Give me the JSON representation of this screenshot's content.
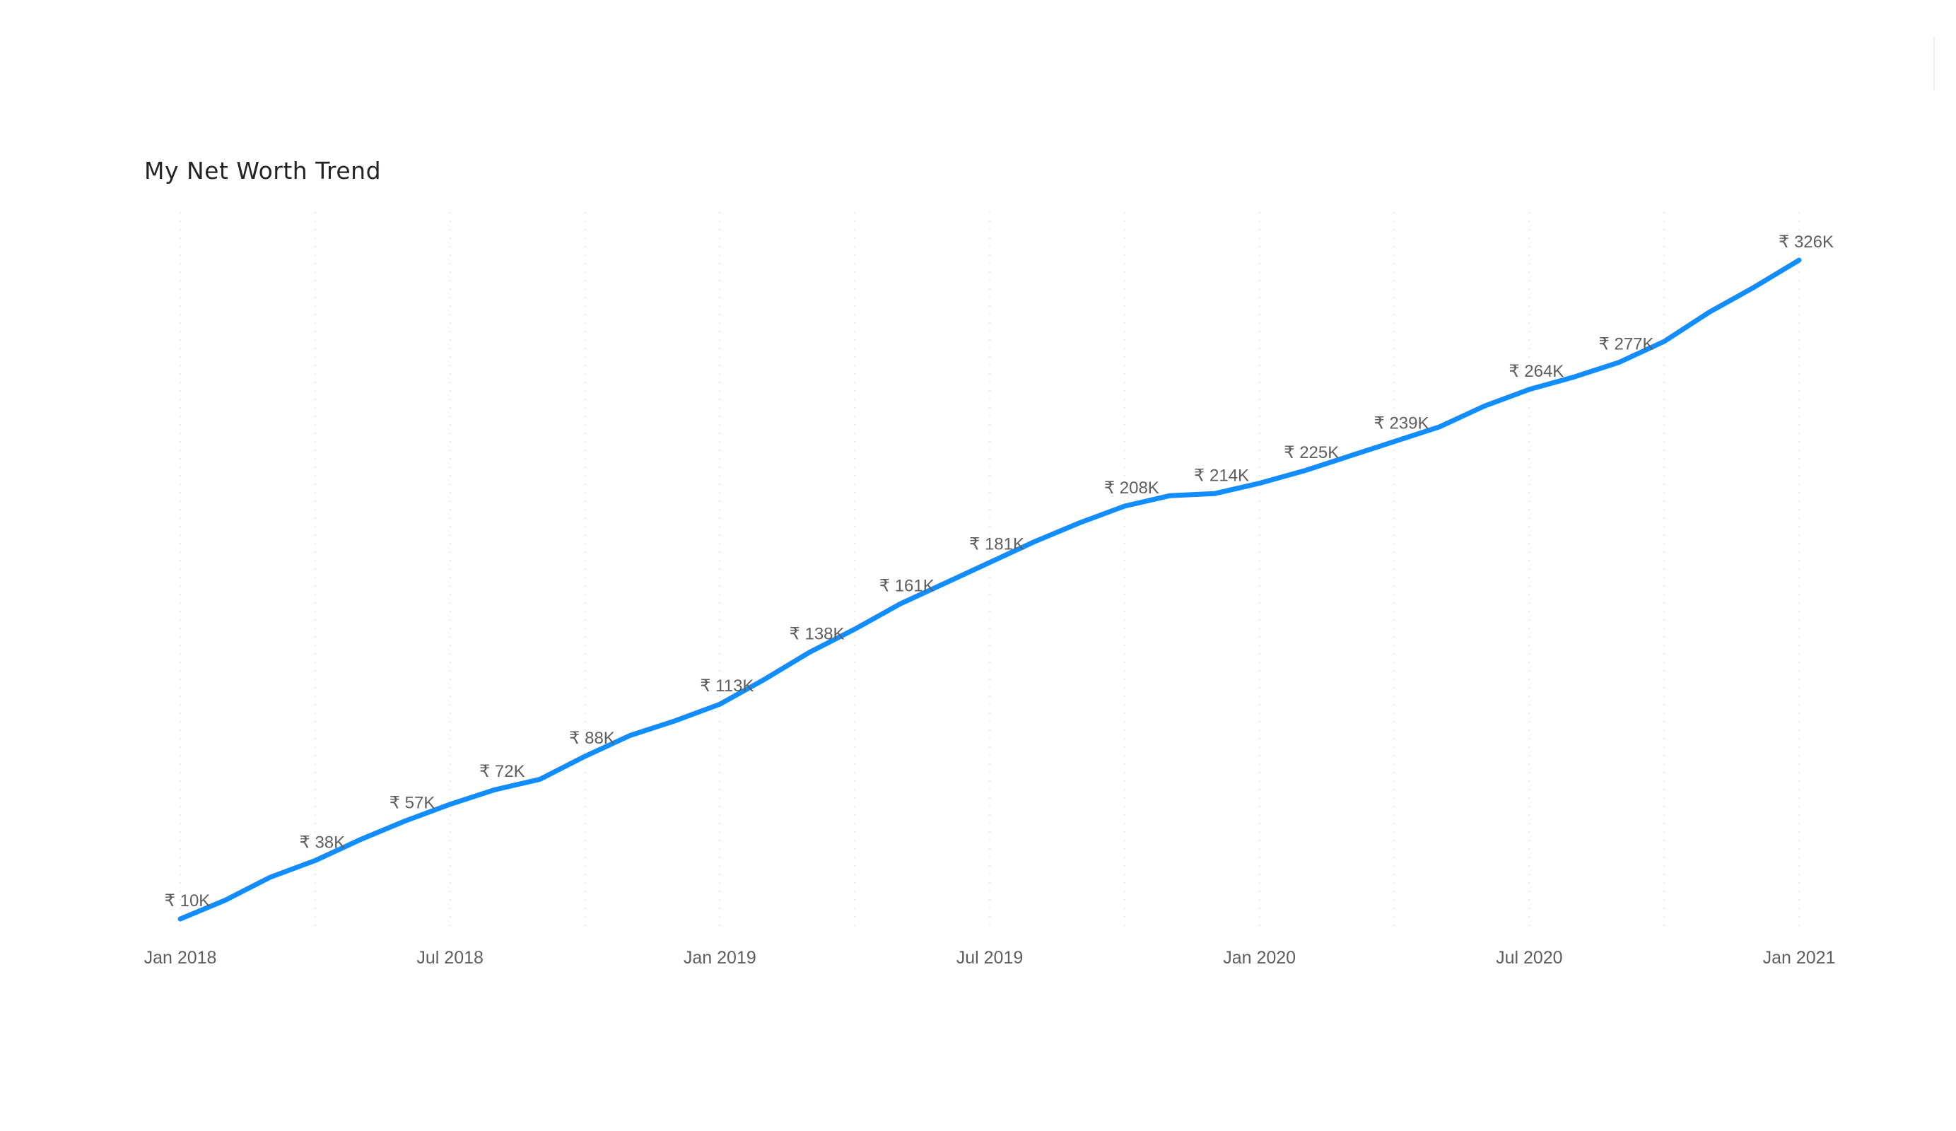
{
  "chart_data": {
    "type": "line",
    "title": "My Net Worth Trend",
    "xlabel": "",
    "ylabel": "",
    "x_ticks": [
      "Jan 2018",
      "Jul 2018",
      "Jan 2019",
      "Jul 2019",
      "Jan 2020",
      "Jul 2020",
      "Jan 2021"
    ],
    "x_range": [
      "2018-01",
      "2021-01"
    ],
    "y_range": [
      10,
      326
    ],
    "grid": "vertical dotted",
    "legend": "none",
    "line_color": "#118DFF",
    "series": [
      {
        "x": [
          "2018-01",
          "2018-02",
          "2018-03",
          "2018-04",
          "2018-05",
          "2018-06",
          "2018-07",
          "2018-08",
          "2018-09",
          "2018-10",
          "2018-11",
          "2018-12",
          "2019-01",
          "2019-02",
          "2019-03",
          "2019-04",
          "2019-05",
          "2019-06",
          "2019-07",
          "2019-08",
          "2019-09",
          "2019-10",
          "2019-11",
          "2019-12",
          "2020-01",
          "2020-02",
          "2020-03",
          "2020-04",
          "2020-05",
          "2020-06",
          "2020-07",
          "2020-08",
          "2020-09",
          "2020-10",
          "2020-11",
          "2020-12",
          "2021-01"
        ],
        "values": [
          10,
          19,
          30,
          38,
          48,
          57,
          65,
          72,
          77,
          88,
          98,
          105,
          113,
          125,
          138,
          149,
          161,
          171,
          181,
          191,
          200,
          208,
          213,
          214,
          219,
          225,
          232,
          239,
          246,
          256,
          264,
          270,
          277,
          287,
          301,
          313,
          326
        ]
      }
    ],
    "data_labels": [
      {
        "x": "2018-01",
        "text": "₹ 10K"
      },
      {
        "x": "2018-04",
        "text": "₹ 38K"
      },
      {
        "x": "2018-06",
        "text": "₹ 57K"
      },
      {
        "x": "2018-08",
        "text": "₹ 72K"
      },
      {
        "x": "2018-10",
        "text": "₹ 88K"
      },
      {
        "x": "2019-01",
        "text": "₹ 113K"
      },
      {
        "x": "2019-03",
        "text": "₹ 138K"
      },
      {
        "x": "2019-05",
        "text": "₹ 161K"
      },
      {
        "x": "2019-07",
        "text": "₹ 181K"
      },
      {
        "x": "2019-10",
        "text": "₹ 208K"
      },
      {
        "x": "2019-12",
        "text": "₹ 214K"
      },
      {
        "x": "2020-02",
        "text": "₹ 225K"
      },
      {
        "x": "2020-04",
        "text": "₹ 239K"
      },
      {
        "x": "2020-07",
        "text": "₹ 264K"
      },
      {
        "x": "2020-09",
        "text": "₹ 277K"
      },
      {
        "x": "2021-01",
        "text": "₹ 326K"
      }
    ]
  }
}
